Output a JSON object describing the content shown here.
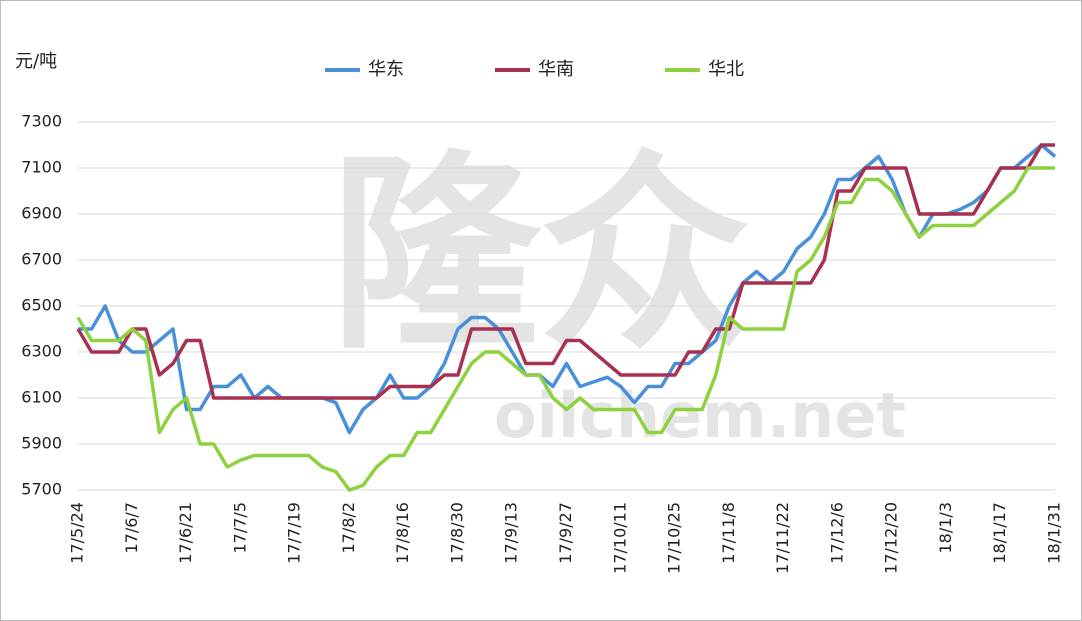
{
  "chart_data": {
    "type": "line",
    "unit_label": "元/吨",
    "watermark": [
      "隆众",
      "oilchem.net"
    ],
    "categories": [
      "17/5/24",
      null,
      null,
      null,
      "17/6/7",
      null,
      null,
      null,
      "17/6/21",
      null,
      null,
      null,
      "17/7/5",
      null,
      null,
      null,
      "17/7/19",
      null,
      null,
      null,
      "17/8/2",
      null,
      null,
      null,
      "17/8/16",
      null,
      null,
      null,
      "17/8/30",
      null,
      null,
      null,
      "17/9/13",
      null,
      null,
      null,
      "17/9/27",
      null,
      null,
      null,
      "17/10/11",
      null,
      null,
      null,
      "17/10/25",
      null,
      null,
      null,
      "17/11/8",
      null,
      null,
      null,
      "17/11/22",
      null,
      null,
      null,
      "17/12/6",
      null,
      null,
      null,
      "17/12/20",
      null,
      null,
      null,
      "18/1/3",
      null,
      null,
      null,
      "18/1/17",
      null,
      null,
      null,
      "18/1/31"
    ],
    "series": [
      {
        "name": "华东",
        "color": "#4a90d9",
        "values": [
          6400,
          6400,
          6500,
          6350,
          6300,
          6300,
          6350,
          6400,
          6050,
          6050,
          6150,
          6150,
          6200,
          6100,
          6150,
          6100,
          6100,
          6100,
          6100,
          6080,
          5950,
          6050,
          6100,
          6200,
          6100,
          6100,
          6150,
          6250,
          6400,
          6450,
          6450,
          6400,
          6300,
          6200,
          6200,
          6150,
          6250,
          6150,
          6170,
          6190,
          6150,
          6080,
          6150,
          6150,
          6250,
          6250,
          6300,
          6350,
          6500,
          6600,
          6650,
          6600,
          6650,
          6750,
          6800,
          6900,
          7050,
          7050,
          7100,
          7150,
          7050,
          6900,
          6800,
          6900,
          6900,
          6920,
          6950,
          7000,
          7100,
          7100,
          7150,
          7200,
          7150
        ]
      },
      {
        "name": "华南",
        "color": "#a8314f",
        "values": [
          6400,
          6300,
          6300,
          6300,
          6400,
          6400,
          6200,
          6250,
          6350,
          6350,
          6100,
          6100,
          6100,
          6100,
          6100,
          6100,
          6100,
          6100,
          6100,
          6100,
          6100,
          6100,
          6100,
          6150,
          6150,
          6150,
          6150,
          6200,
          6200,
          6400,
          6400,
          6400,
          6400,
          6250,
          6250,
          6250,
          6350,
          6350,
          6300,
          6250,
          6200,
          6200,
          6200,
          6200,
          6200,
          6300,
          6300,
          6400,
          6400,
          6600,
          6600,
          6600,
          6600,
          6600,
          6600,
          6700,
          7000,
          7000,
          7100,
          7100,
          7100,
          7100,
          6900,
          6900,
          6900,
          6900,
          6900,
          7000,
          7100,
          7100,
          7100,
          7200,
          7200
        ]
      },
      {
        "name": "华北",
        "color": "#8dd13f",
        "values": [
          6450,
          6350,
          6350,
          6350,
          6400,
          6350,
          5950,
          6050,
          6100,
          5900,
          5900,
          5800,
          5830,
          5850,
          5850,
          5850,
          5850,
          5850,
          5800,
          5780,
          5700,
          5720,
          5800,
          5850,
          5850,
          5950,
          5950,
          6050,
          6150,
          6250,
          6300,
          6300,
          6250,
          6200,
          6200,
          6100,
          6050,
          6100,
          6050,
          6050,
          6050,
          6050,
          5950,
          5950,
          6050,
          6050,
          6050,
          6200,
          6450,
          6400,
          6400,
          6400,
          6400,
          6650,
          6700,
          6800,
          6950,
          6950,
          7050,
          7050,
          7000,
          6900,
          6800,
          6850,
          6850,
          6850,
          6850,
          6900,
          6950,
          7000,
          7100,
          7100,
          7100
        ]
      }
    ],
    "ylim": [
      5700,
      7300
    ],
    "yticks": [
      5700,
      5900,
      6100,
      6300,
      6500,
      6700,
      6900,
      7100,
      7300
    ],
    "grid": true,
    "legend": "top"
  }
}
